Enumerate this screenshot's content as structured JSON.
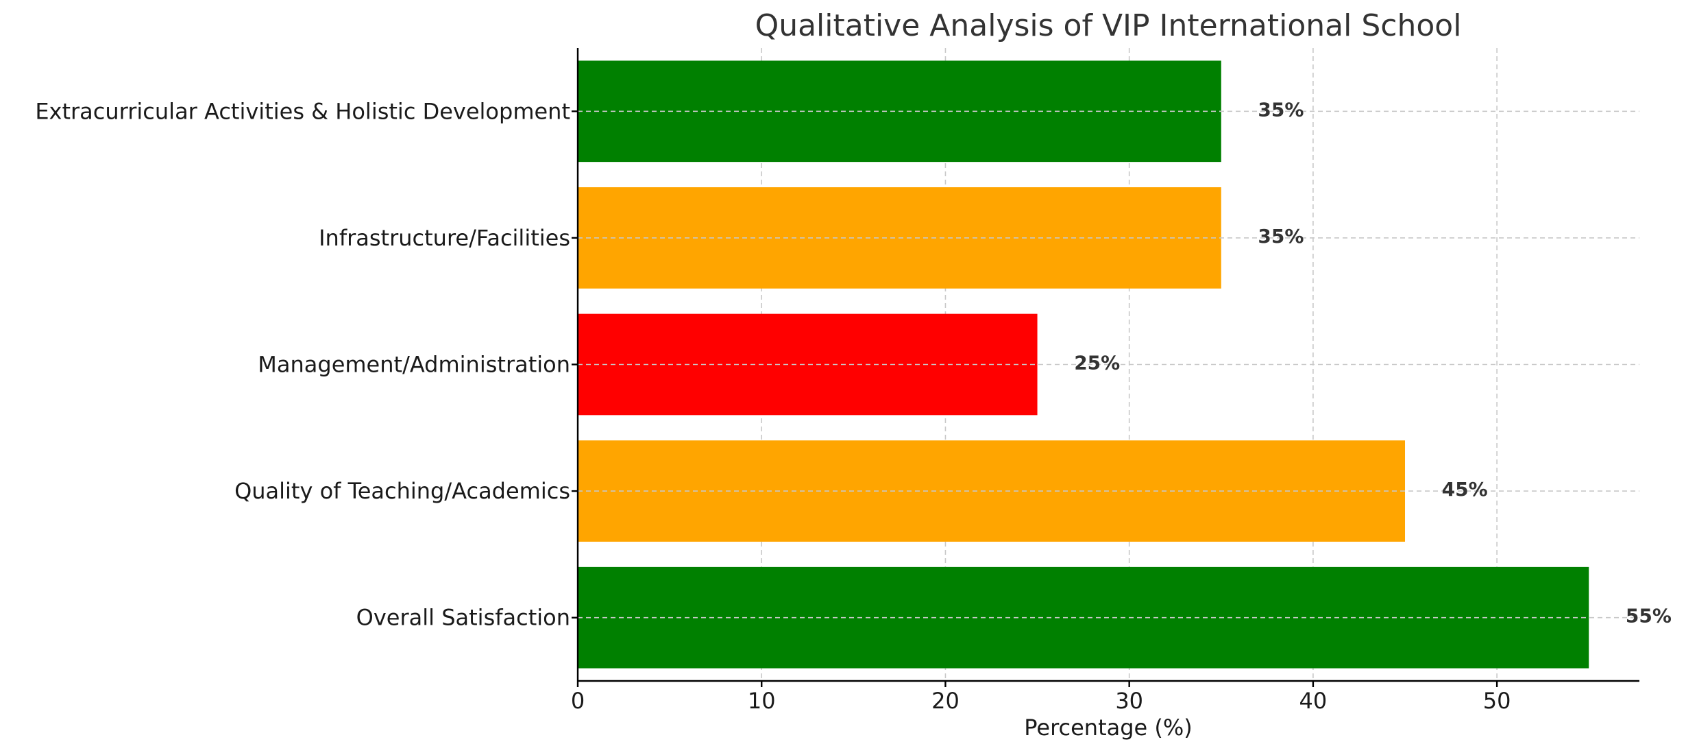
{
  "chart_data": {
    "type": "bar",
    "orientation": "horizontal",
    "title": "Qualitative Analysis of VIP International School",
    "xlabel": "Percentage (%)",
    "ylabel": "",
    "xlim": [
      0,
      57.75
    ],
    "xticks": [
      0,
      10,
      20,
      30,
      40,
      50
    ],
    "grid": true,
    "categories": [
      "Extracurricular Activities & Holistic Development",
      "Infrastructure/Facilities",
      "Management/Administration",
      "Quality of Teaching/Academics",
      "Overall Satisfaction"
    ],
    "values": [
      35,
      35,
      25,
      45,
      55
    ],
    "colors": [
      "#008000",
      "#FFA500",
      "#FF0000",
      "#FFA500",
      "#008000"
    ],
    "data_labels": [
      "35%",
      "35%",
      "25%",
      "45%",
      "55%"
    ]
  }
}
